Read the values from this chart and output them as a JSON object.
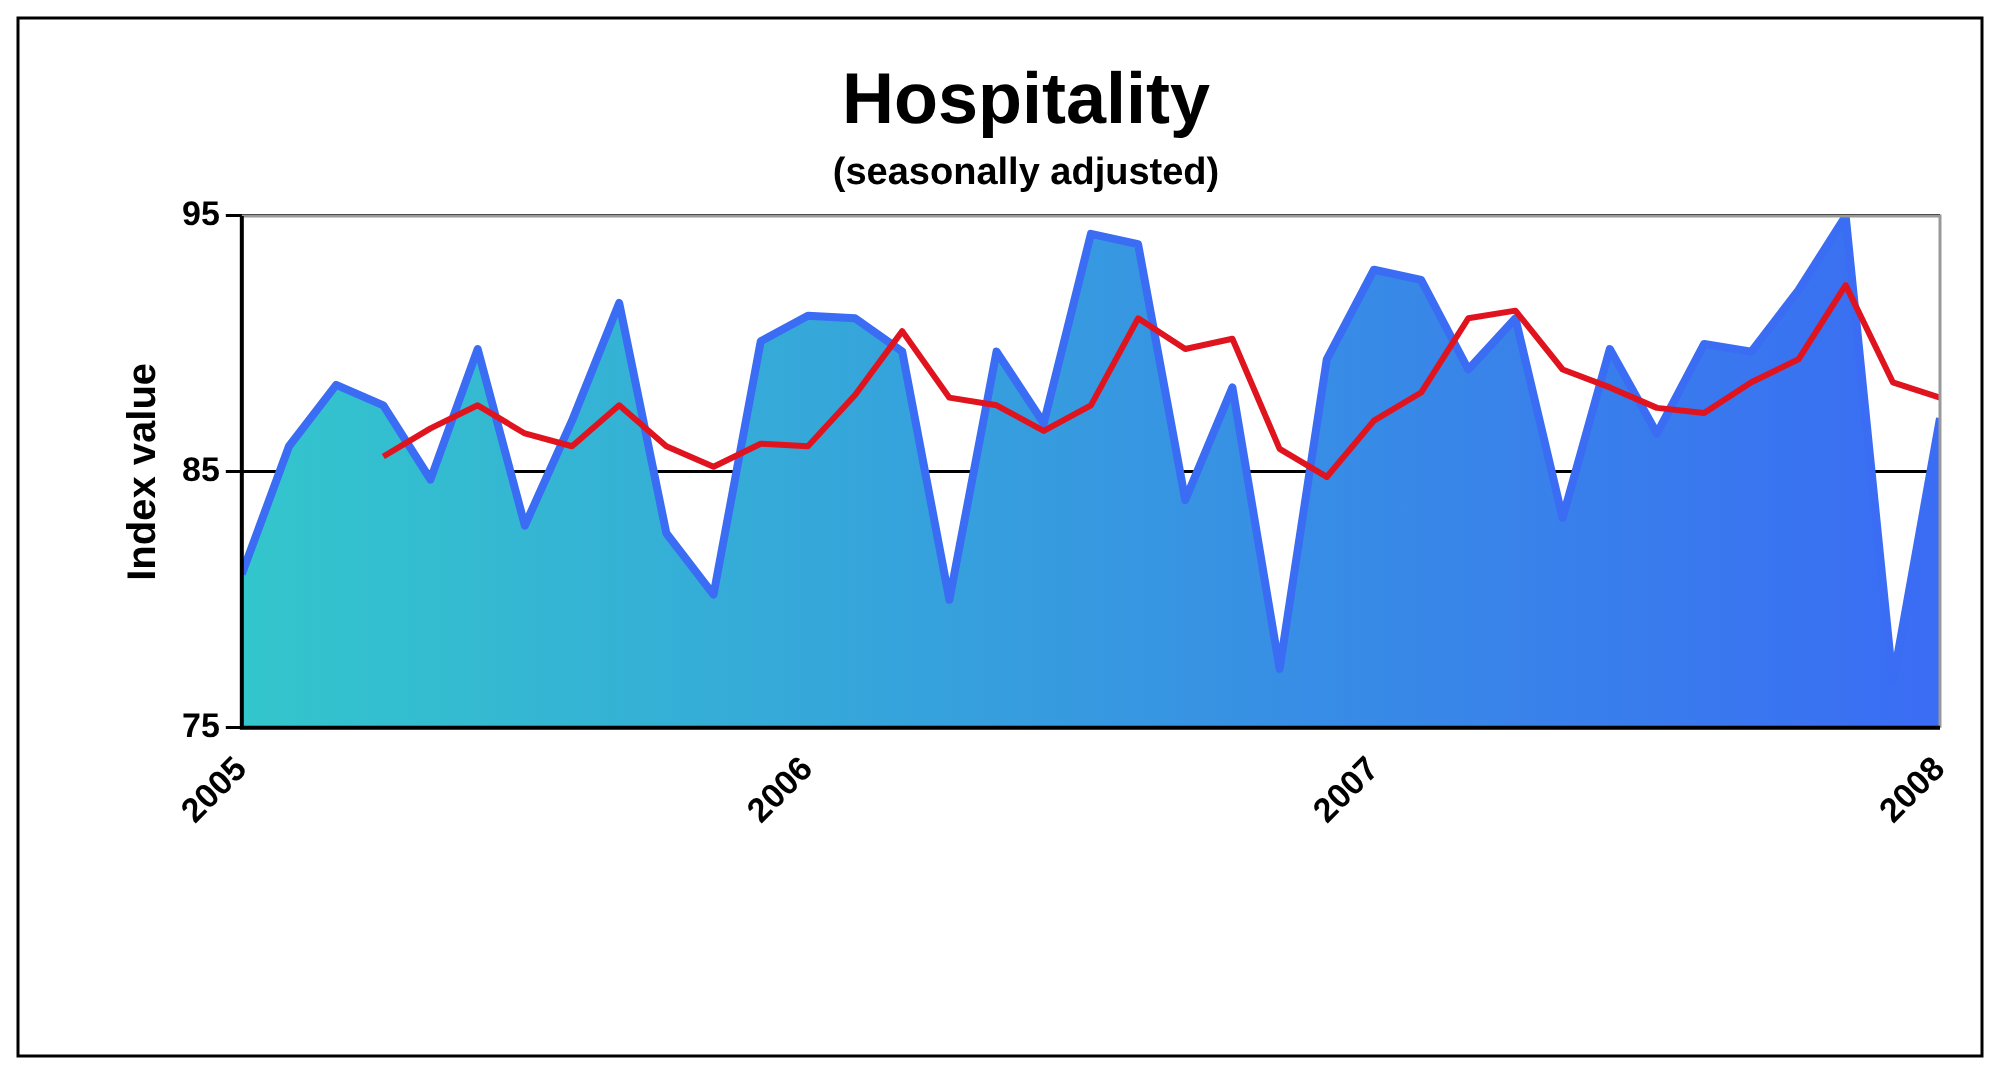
{
  "chart_data": {
    "type": "area",
    "title": "Hospitality",
    "subtitle": "(seasonally adjusted)",
    "ylabel": "Index value",
    "x": [
      "2005-01",
      "2005-02",
      "2005-03",
      "2005-04",
      "2005-05",
      "2005-06",
      "2005-07",
      "2005-08",
      "2005-09",
      "2005-10",
      "2005-11",
      "2005-12",
      "2006-01",
      "2006-02",
      "2006-03",
      "2006-04",
      "2006-05",
      "2006-06",
      "2006-07",
      "2006-08",
      "2006-09",
      "2006-10",
      "2006-11",
      "2006-12",
      "2007-01",
      "2007-02",
      "2007-03",
      "2007-04",
      "2007-05",
      "2007-06",
      "2007-07",
      "2007-08",
      "2007-09",
      "2007-10",
      "2007-11",
      "2007-12",
      "2008-01"
    ],
    "series": [
      {
        "color": "#3a6cf4",
        "values": [
          81,
          86,
          88.4,
          87.6,
          84.7,
          89.8,
          82.9,
          87,
          91.6,
          82.6,
          80.2,
          90.1,
          91.1,
          91,
          89.7,
          80,
          89.7,
          86.9,
          94.3,
          93.9,
          83.9,
          88.3,
          77.3,
          89.4,
          92.9,
          92.5,
          89,
          91,
          83.2,
          89.8,
          86.5,
          90,
          89.7,
          92.1,
          95,
          76.8,
          87.1
        ]
      },
      {
        "type": "line",
        "color": "#e0141e",
        "values": [
          null,
          null,
          null,
          85.6,
          86.7,
          87.6,
          86.5,
          86,
          87.6,
          86,
          85.2,
          86.1,
          86,
          88,
          90.5,
          87.9,
          87.6,
          86.6,
          87.6,
          91,
          89.8,
          90.2,
          85.9,
          84.8,
          87,
          88.1,
          91,
          91.3,
          89,
          88.3,
          87.5,
          87.3,
          88.5,
          89.4,
          92.3,
          88.5,
          87.9
        ]
      }
    ],
    "xlim": [
      "2005-01",
      "2008-01"
    ],
    "xticks": [
      "2005",
      "2006",
      "2007",
      "2008"
    ],
    "ylim": [
      75,
      95
    ],
    "yticks": [
      75,
      85,
      95
    ],
    "grid": "y",
    "legend": false,
    "marker": "none",
    "line_style": "solid"
  }
}
